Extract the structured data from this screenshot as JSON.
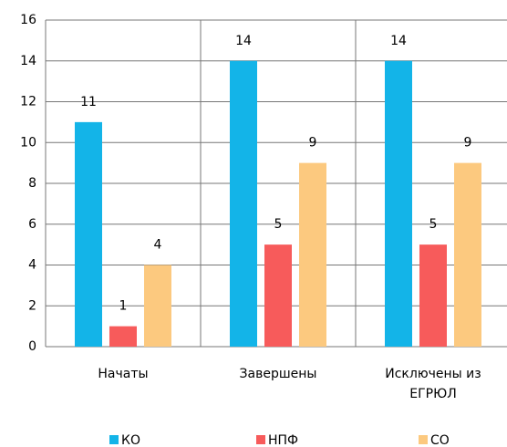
{
  "chart_data": {
    "type": "bar",
    "categories": [
      "Начаты",
      "Завершены",
      "Исключены из ЕГРЮЛ"
    ],
    "series": [
      {
        "name": "КО",
        "color": "#13b4e8",
        "values": [
          11,
          14,
          14
        ]
      },
      {
        "name": "НПФ",
        "color": "#f75b5b",
        "values": [
          1,
          5,
          5
        ]
      },
      {
        "name": "СО",
        "color": "#fcc97f",
        "values": [
          4,
          9,
          9
        ]
      }
    ],
    "ylim": [
      0,
      16
    ],
    "yticks": [
      0,
      2,
      4,
      6,
      8,
      10,
      12,
      14,
      16
    ],
    "grid": true,
    "legend": "bottom"
  }
}
